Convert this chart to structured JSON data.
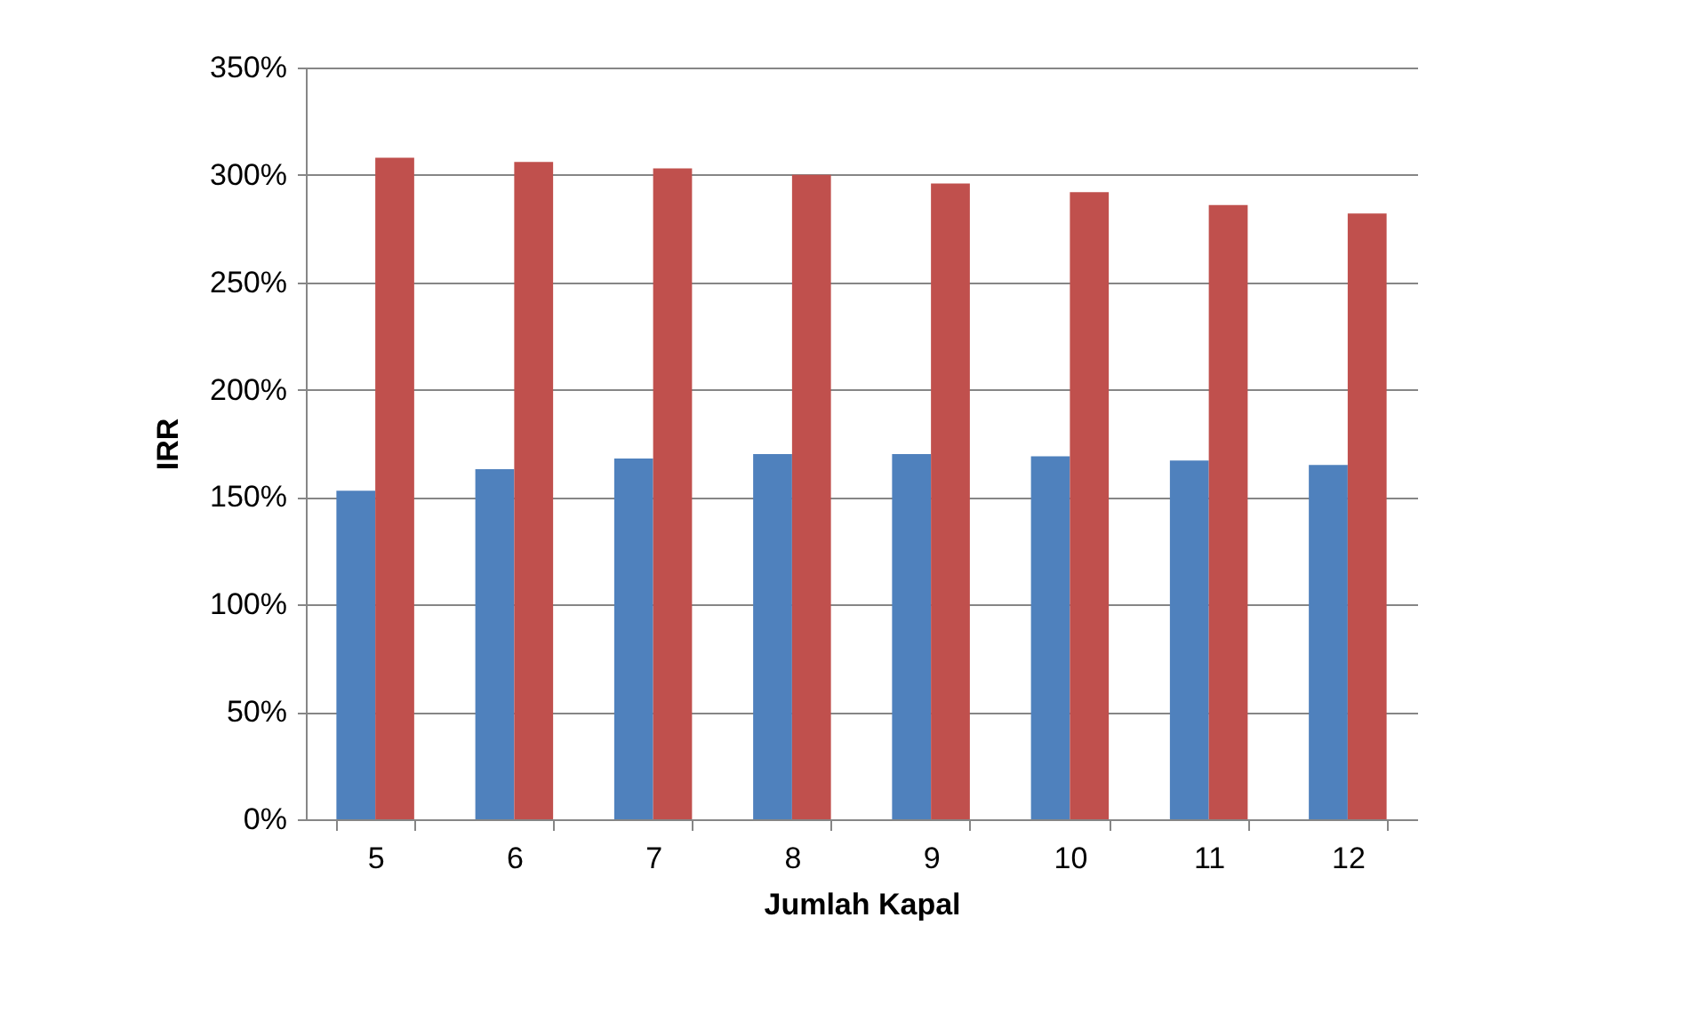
{
  "chart_data": {
    "type": "bar",
    "xlabel": "Jumlah Kapal",
    "ylabel": "IRR",
    "categories": [
      "5",
      "6",
      "7",
      "8",
      "9",
      "10",
      "11",
      "12"
    ],
    "series": [
      {
        "color": "#4f81bd",
        "values": [
          153,
          163,
          168,
          170,
          170,
          169,
          167,
          165
        ]
      },
      {
        "color": "#c0504d",
        "values": [
          308,
          306,
          303,
          300,
          296,
          292,
          286,
          282
        ]
      }
    ],
    "ylim": [
      0,
      350
    ],
    "yticks": [
      {
        "value": 0,
        "label": "0%"
      },
      {
        "value": 50,
        "label": "50%"
      },
      {
        "value": 100,
        "label": "100%"
      },
      {
        "value": 150,
        "label": "150%"
      },
      {
        "value": 200,
        "label": "200%"
      },
      {
        "value": 250,
        "label": "250%"
      },
      {
        "value": 300,
        "label": "300%"
      },
      {
        "value": 350,
        "label": "350%"
      }
    ],
    "grid": "y"
  }
}
